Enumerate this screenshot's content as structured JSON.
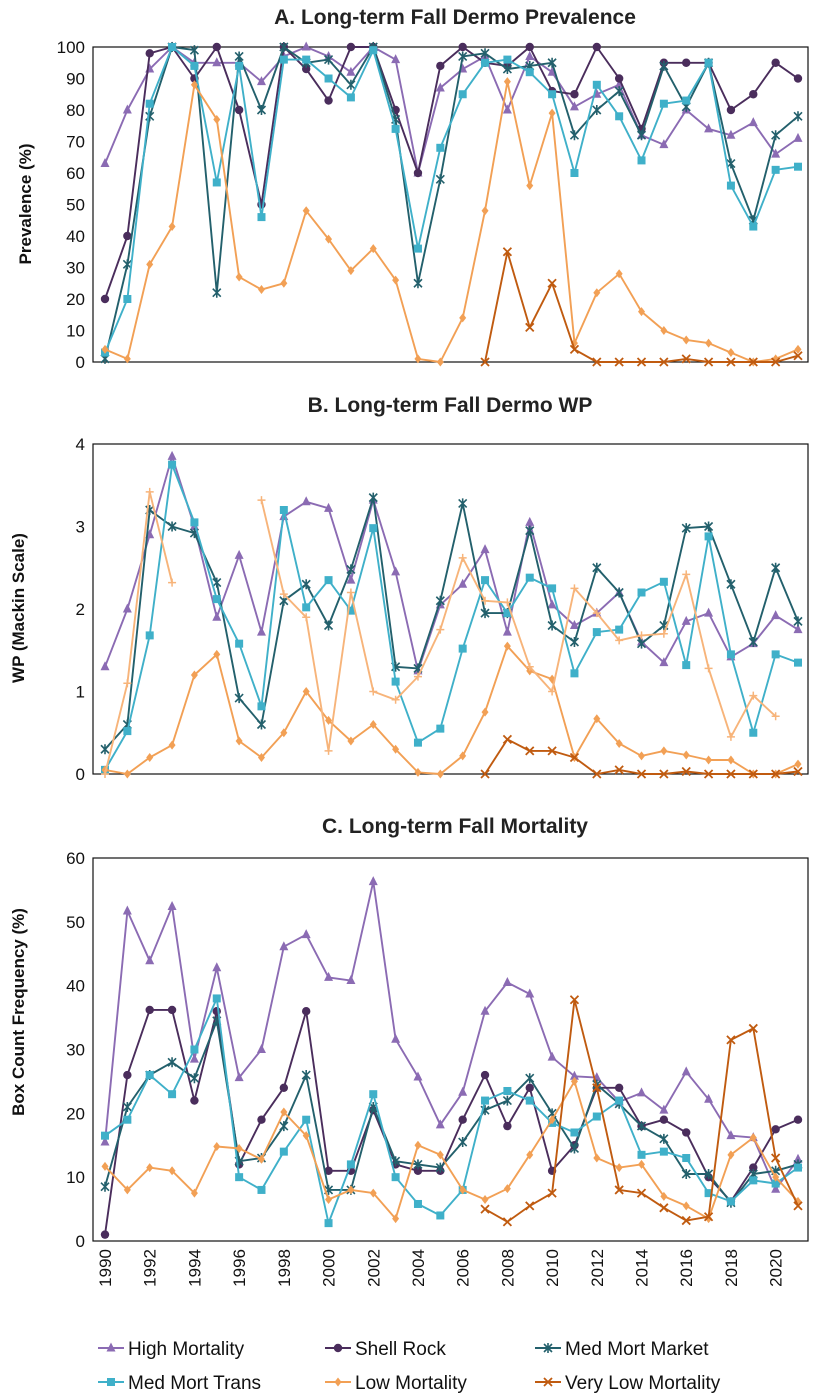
{
  "chart_data": [
    {
      "type": "line",
      "title": "A. Long-term Fall Dermo Prevalence",
      "xlabel": "",
      "ylabel": "Prevalence (%)",
      "ylim": [
        0,
        100
      ],
      "yticks": [
        0,
        10,
        20,
        30,
        40,
        50,
        60,
        70,
        80,
        90,
        100
      ],
      "x": [
        1990,
        1991,
        1992,
        1993,
        1994,
        1995,
        1996,
        1997,
        1998,
        1999,
        2000,
        2001,
        2002,
        2003,
        2004,
        2005,
        2006,
        2007,
        2008,
        2009,
        2010,
        2011,
        2012,
        2013,
        2014,
        2015,
        2016,
        2017,
        2018,
        2019,
        2020,
        2021
      ],
      "series": [
        {
          "name": "High Mortality",
          "values": [
            63,
            80,
            93,
            100,
            95,
            95,
            95,
            89,
            97,
            100,
            97,
            92,
            100,
            96,
            60,
            87,
            93,
            97,
            80,
            97,
            92,
            81,
            85,
            88,
            72,
            69,
            80,
            74,
            72,
            76,
            66,
            71
          ]
        },
        {
          "name": "Shell Rock",
          "values": [
            20,
            40,
            98,
            100,
            90,
            100,
            80,
            50,
            100,
            93,
            83,
            100,
            100,
            80,
            60,
            94,
            100,
            95,
            94,
            100,
            86,
            85,
            100,
            90,
            74,
            95,
            95,
            95,
            80,
            85,
            95,
            90
          ]
        },
        {
          "name": "Med Mort Market",
          "values": [
            1,
            31,
            78,
            100,
            99,
            22,
            97,
            80,
            100,
            95,
            96,
            88,
            100,
            77,
            25,
            58,
            97,
            98,
            93,
            94,
            95,
            72,
            80,
            86,
            72,
            94,
            81,
            95,
            63,
            45,
            72,
            78
          ]
        },
        {
          "name": "Med Mort Trans",
          "values": [
            3,
            20,
            82,
            100,
            94,
            57,
            94,
            46,
            96,
            96,
            90,
            84,
            99,
            74,
            36,
            68,
            85,
            95,
            96,
            92,
            85,
            60,
            88,
            78,
            64,
            82,
            83,
            95,
            56,
            43,
            61,
            62
          ]
        },
        {
          "name": "Low Mortality",
          "values": [
            4,
            1,
            31,
            43,
            88,
            77,
            27,
            23,
            25,
            48,
            39,
            29,
            36,
            26,
            1,
            0,
            14,
            48,
            89,
            56,
            79,
            6,
            22,
            28,
            16,
            10,
            7,
            6,
            3,
            0,
            1,
            4
          ]
        },
        {
          "name": "Very Low Mortality",
          "values": [
            null,
            null,
            null,
            null,
            null,
            null,
            null,
            null,
            null,
            null,
            null,
            null,
            null,
            null,
            null,
            null,
            null,
            0,
            35,
            11,
            25,
            4,
            0,
            0,
            0,
            0,
            1,
            0,
            0,
            0,
            0,
            2
          ]
        }
      ]
    },
    {
      "type": "line",
      "title": "B. Long-term Fall Dermo WP",
      "xlabel": "",
      "ylabel": "WP (Mackin Scale)",
      "ylim": [
        0,
        4
      ],
      "yticks": [
        0,
        1,
        2,
        3,
        4
      ],
      "x": [
        1990,
        1991,
        1992,
        1993,
        1994,
        1995,
        1996,
        1997,
        1998,
        1999,
        2000,
        2001,
        2002,
        2003,
        2004,
        2005,
        2006,
        2007,
        2008,
        2009,
        2010,
        2011,
        2012,
        2013,
        2014,
        2015,
        2016,
        2017,
        2018,
        2019,
        2020,
        2021
      ],
      "series": [
        {
          "name": "High Mortality",
          "values": [
            1.3,
            2.0,
            2.9,
            3.85,
            3.0,
            1.9,
            2.65,
            1.72,
            3.12,
            3.3,
            3.22,
            2.35,
            3.32,
            2.45,
            1.25,
            2.05,
            2.3,
            2.72,
            1.72,
            3.05,
            2.05,
            1.8,
            1.95,
            2.2,
            1.6,
            1.35,
            1.85,
            1.95,
            1.42,
            1.58,
            1.92,
            1.75
          ]
        },
        {
          "name": "Shell Rock",
          "values": [
            null,
            null,
            null,
            null,
            null,
            null,
            null,
            null,
            null,
            null,
            null,
            null,
            null,
            null,
            null,
            null,
            null,
            null,
            null,
            null,
            null,
            null,
            null,
            null,
            null,
            null,
            null,
            null,
            null,
            null,
            null,
            null
          ]
        },
        {
          "name": "Med Mort Market",
          "values": [
            0.3,
            0.6,
            3.2,
            3.0,
            2.92,
            2.32,
            0.92,
            0.6,
            2.1,
            2.3,
            1.8,
            2.48,
            3.35,
            1.3,
            1.28,
            2.1,
            3.28,
            1.95,
            1.95,
            2.95,
            1.8,
            1.6,
            2.5,
            2.2,
            1.58,
            1.8,
            2.98,
            3.0,
            2.3,
            1.6,
            2.5,
            1.85
          ]
        },
        {
          "name": "Med Mort Trans",
          "values": [
            0.05,
            0.52,
            1.68,
            3.75,
            3.05,
            2.12,
            1.58,
            0.82,
            3.2,
            2.02,
            2.35,
            1.98,
            2.98,
            1.12,
            0.38,
            0.55,
            1.52,
            2.35,
            1.95,
            2.38,
            2.25,
            1.22,
            1.72,
            1.75,
            2.2,
            2.33,
            1.32,
            2.88,
            1.45,
            0.5,
            1.45,
            1.35
          ]
        },
        {
          "name": "Low Mortality",
          "values": [
            0.05,
            0.0,
            0.2,
            0.35,
            1.2,
            1.45,
            0.4,
            0.2,
            0.5,
            1.0,
            0.65,
            0.4,
            0.6,
            0.3,
            0.02,
            0.0,
            0.22,
            0.75,
            1.55,
            1.25,
            1.15,
            0.2,
            0.67,
            0.37,
            0.22,
            0.28,
            0.23,
            0.17,
            0.17,
            0.0,
            0.0,
            0.12
          ]
        },
        {
          "name": "Very Low Mortality",
          "values": [
            null,
            null,
            null,
            null,
            null,
            null,
            null,
            null,
            null,
            null,
            null,
            null,
            null,
            null,
            null,
            null,
            null,
            0.0,
            0.42,
            0.28,
            0.28,
            0.2,
            0.0,
            0.05,
            0.0,
            0.0,
            0.03,
            0.0,
            0.0,
            0.0,
            0.0,
            0.03
          ]
        },
        {
          "name": "",
          "values": [
            0.0,
            1.1,
            3.42,
            2.32,
            null,
            null,
            null,
            3.32,
            2.18,
            1.9,
            0.28,
            2.2,
            1.0,
            0.9,
            1.18,
            1.75,
            2.62,
            2.1,
            2.08,
            1.3,
            1.0,
            2.25,
            1.95,
            1.62,
            1.68,
            1.7,
            2.42,
            1.28,
            0.45,
            0.95,
            0.7,
            null
          ]
        }
      ]
    },
    {
      "type": "line",
      "title": "C. Long-term Fall Mortality",
      "xlabel": "",
      "ylabel": "Box Count Frequency (%)",
      "ylim": [
        0,
        60
      ],
      "yticks": [
        0,
        10,
        20,
        30,
        40,
        50,
        60
      ],
      "x": [
        1990,
        1991,
        1992,
        1993,
        1994,
        1995,
        1996,
        1997,
        1998,
        1999,
        2000,
        2001,
        2002,
        2003,
        2004,
        2005,
        2006,
        2007,
        2008,
        2009,
        2010,
        2011,
        2012,
        2013,
        2014,
        2015,
        2016,
        2017,
        2018,
        2019,
        2020,
        2021
      ],
      "xticks": [
        "1990",
        "1992",
        "1994",
        "1996",
        "1998",
        "2000",
        "2002",
        "2004",
        "2006",
        "2008",
        "2010",
        "2012",
        "2014",
        "2016",
        "2018",
        "2020"
      ],
      "series": [
        {
          "name": "High Mortality",
          "values": [
            15.5,
            51.7,
            43.9,
            52.4,
            28.5,
            42.8,
            25.6,
            30.0,
            46.1,
            48.0,
            41.3,
            40.8,
            56.3,
            31.6,
            25.7,
            18.2,
            23.3,
            36.0,
            40.5,
            38.7,
            28.8,
            25.8,
            25.6,
            21.8,
            23.2,
            20.5,
            26.5,
            22.2,
            16.5,
            16.2,
            8.1,
            12.8
          ]
        },
        {
          "name": "Shell Rock",
          "values": [
            1.0,
            26.0,
            36.2,
            36.2,
            22.0,
            36.0,
            12.0,
            19.0,
            24.0,
            36.0,
            11.0,
            11.0,
            20.5,
            12.0,
            11.0,
            11.0,
            19.0,
            26.0,
            18.0,
            24.0,
            11.0,
            15.0,
            24.0,
            24.0,
            18.0,
            19.0,
            17.0,
            10.0,
            6.2,
            11.5,
            17.5,
            19.0
          ]
        },
        {
          "name": "Med Mort Market",
          "values": [
            8.5,
            21.0,
            26.0,
            28.0,
            25.5,
            34.5,
            12.5,
            13.0,
            18.0,
            26.0,
            8.0,
            8.0,
            21.0,
            12.5,
            12.0,
            11.5,
            15.5,
            20.5,
            22.0,
            25.5,
            20.0,
            14.5,
            24.5,
            21.5,
            18.0,
            16.0,
            10.5,
            10.5,
            6.0,
            10.5,
            11.0,
            12.0
          ]
        },
        {
          "name": "Med Mort Trans",
          "values": [
            16.5,
            19.0,
            26.0,
            23.0,
            30.0,
            38.0,
            10.0,
            8.0,
            14.0,
            19.0,
            2.8,
            12.0,
            23.0,
            10.0,
            5.8,
            4.0,
            8.0,
            22.0,
            23.5,
            22.0,
            18.5,
            17.0,
            19.5,
            22.0,
            13.5,
            14.0,
            13.0,
            7.5,
            6.2,
            9.5,
            9.0,
            11.5
          ]
        },
        {
          "name": "Low Mortality",
          "values": [
            11.7,
            8.0,
            11.5,
            11.0,
            7.5,
            14.8,
            14.5,
            12.8,
            20.2,
            16.5,
            6.5,
            8.0,
            7.5,
            3.5,
            15.0,
            13.5,
            8.0,
            6.5,
            8.2,
            13.5,
            19.0,
            25.0,
            13.0,
            11.5,
            12.0,
            7.0,
            5.5,
            3.5,
            13.5,
            16.2,
            10.0,
            6.2
          ]
        },
        {
          "name": "Very Low Mortality",
          "values": [
            null,
            null,
            null,
            null,
            null,
            null,
            null,
            null,
            null,
            null,
            null,
            null,
            null,
            null,
            null,
            null,
            null,
            5.0,
            3.0,
            5.5,
            7.5,
            37.8,
            24.0,
            8.0,
            7.5,
            5.2,
            3.2,
            3.8,
            31.5,
            33.3,
            13.0,
            5.5
          ]
        }
      ]
    }
  ],
  "legend": [
    {
      "label": "High Mortality",
      "color": "#8b6bb3",
      "marker": "triangle"
    },
    {
      "label": "Shell Rock",
      "color": "#4a2d5c",
      "marker": "circle"
    },
    {
      "label": "Med Mort Market",
      "color": "#23606c",
      "marker": "star"
    },
    {
      "label": "Med Mort Trans",
      "color": "#3fb0c9",
      "marker": "square"
    },
    {
      "label": "Low Mortality",
      "color": "#f2a055",
      "marker": "diamond"
    },
    {
      "label": "Very Low Mortality",
      "color": "#c05b10",
      "marker": "x"
    }
  ],
  "colors": {
    "High Mortality": "#8b6bb3",
    "Shell Rock": "#4a2d5c",
    "Med Mort Market": "#23606c",
    "Med Mort Trans": "#3fb0c9",
    "Low Mortality": "#f2a055",
    "Very Low Mortality": "#c05b10",
    "": "#f7b47a"
  },
  "markers": {
    "High Mortality": "triangle",
    "Shell Rock": "circle",
    "Med Mort Market": "star",
    "Med Mort Trans": "square",
    "Low Mortality": "diamond",
    "Very Low Mortality": "x",
    "": "plus"
  }
}
